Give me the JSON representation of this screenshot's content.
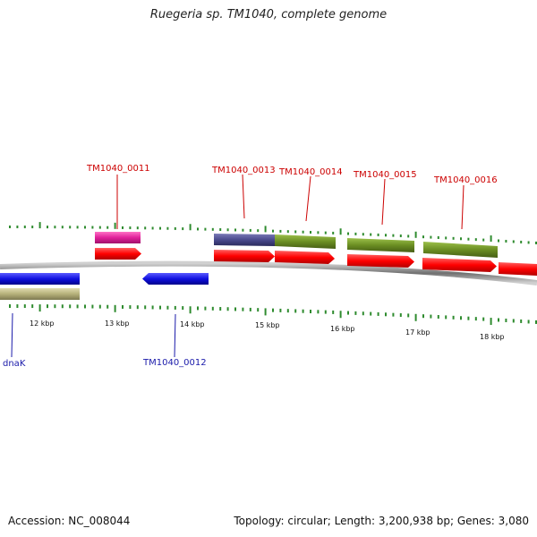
{
  "title": "Ruegeria sp. TM1040, complete genome",
  "footer": {
    "accession": "Accession: NC_008044",
    "topology": "Topology: circular; Length: 3,200,938 bp; Genes: 3,080"
  },
  "colors": {
    "backbone": "#8c8c8c",
    "tick": "#2e8b2e",
    "forward_cds": "#ff0000",
    "reverse_cds": "#1010e0",
    "label_top": "#cc0000",
    "label_bottom": "#1a1aaa",
    "gene_magenta": "#e0209a",
    "gene_purple": "#4a4a8c",
    "gene_olive": "#6b8e23",
    "gene_khaki": "#b5b07a"
  },
  "kbp_labels": [
    "12 kbp",
    "13 kbp",
    "14 kbp",
    "15 kbp",
    "16 kbp",
    "17 kbp",
    "18 kbp"
  ],
  "gene_labels": {
    "top": [
      "TM1040_0011",
      "TM1040_0013",
      "TM1040_0014",
      "TM1040_0015",
      "TM1040_0016"
    ],
    "bottom": [
      "dnaK",
      "TM1040_0012"
    ]
  }
}
